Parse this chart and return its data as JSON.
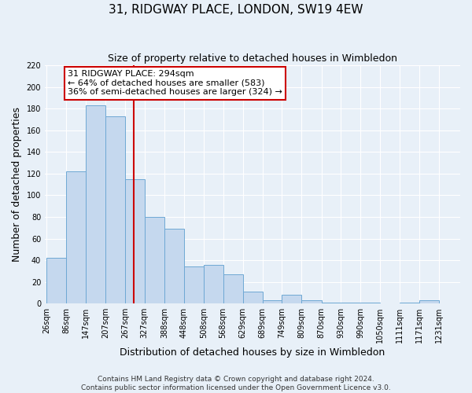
{
  "title": "31, RIDGWAY PLACE, LONDON, SW19 4EW",
  "subtitle": "Size of property relative to detached houses in Wimbledon",
  "xlabel": "Distribution of detached houses by size in Wimbledon",
  "ylabel": "Number of detached properties",
  "footer_lines": [
    "Contains HM Land Registry data © Crown copyright and database right 2024.",
    "Contains public sector information licensed under the Open Government Licence v3.0."
  ],
  "bar_edges": [
    26,
    86,
    147,
    207,
    267,
    327,
    388,
    448,
    508,
    568,
    629,
    689,
    749,
    809,
    870,
    930,
    990,
    1050,
    1111,
    1171,
    1231
  ],
  "bar_heights": [
    42,
    122,
    183,
    173,
    115,
    80,
    69,
    34,
    36,
    27,
    11,
    3,
    8,
    3,
    1,
    1,
    1,
    0,
    1,
    3
  ],
  "bar_color": "#c5d8ee",
  "bar_edge_color": "#6ea8d4",
  "vline_x": 294,
  "vline_color": "#cc0000",
  "annotation_line1": "31 RIDGWAY PLACE: 294sqm",
  "annotation_line2": "← 64% of detached houses are smaller (583)",
  "annotation_line3": "36% of semi-detached houses are larger (324) →",
  "annotation_box_facecolor": "#ffffff",
  "annotation_box_edgecolor": "#cc0000",
  "ylim": [
    0,
    220
  ],
  "bg_color": "#e8f0f8",
  "grid_color": "#ffffff",
  "tick_label_fontsize": 7,
  "axis_label_fontsize": 9,
  "title_fontsize": 11,
  "subtitle_fontsize": 9,
  "annotation_fontsize": 8,
  "footer_fontsize": 6.5
}
